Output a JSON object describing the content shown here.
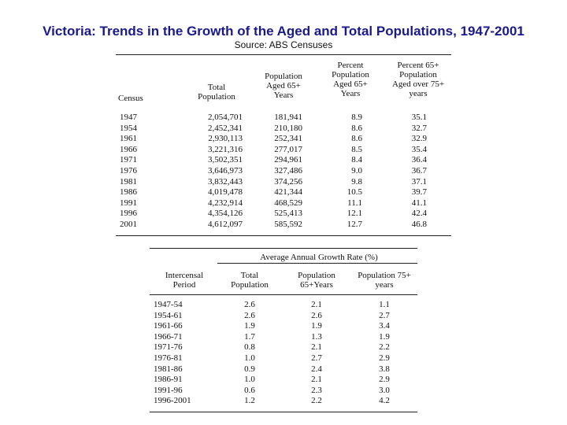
{
  "title": "Victoria:  Trends in the Growth of the Aged and Total Populations, 1947-2001",
  "source": "Source:  ABS Censuses",
  "table1": {
    "headers": {
      "census": "Census",
      "total_population": "Total Population",
      "aged_65": "Population Aged 65+ Years",
      "percent_65": "Percent Population Aged 65+ Years",
      "percent_75": "Percent 65+ Population Aged over 75+ years"
    },
    "rows": [
      {
        "census": "1947",
        "total": "2,054,701",
        "aged": "181,941",
        "pct": "8.9",
        "pct75": "35.1"
      },
      {
        "census": "1954",
        "total": "2,452,341",
        "aged": "210,180",
        "pct": "8.6",
        "pct75": "32.7"
      },
      {
        "census": "1961",
        "total": "2,930,113",
        "aged": "252,341",
        "pct": "8.6",
        "pct75": "32.9"
      },
      {
        "census": "1966",
        "total": "3,221,316",
        "aged": "277,017",
        "pct": "8.5",
        "pct75": "35.4"
      },
      {
        "census": "1971",
        "total": "3,502,351",
        "aged": "294,961",
        "pct": "8.4",
        "pct75": "36.4"
      },
      {
        "census": "1976",
        "total": "3,646,973",
        "aged": "327,486",
        "pct": "9.0",
        "pct75": "36.7"
      },
      {
        "census": "1981",
        "total": "3,832,443",
        "aged": "374,256",
        "pct": "9.8",
        "pct75": "37.1"
      },
      {
        "census": "1986",
        "total": "4,019,478",
        "aged": "421,344",
        "pct": "10.5",
        "pct75": "39.7"
      },
      {
        "census": "1991",
        "total": "4,232,914",
        "aged": "468,529",
        "pct": "11.1",
        "pct75": "41.1"
      },
      {
        "census": "1996",
        "total": "4,354,126",
        "aged": "525,413",
        "pct": "12.1",
        "pct75": "42.4"
      },
      {
        "census": "2001",
        "total": "4,612,097",
        "aged": "585,592",
        "pct": "12.7",
        "pct75": "46.8"
      }
    ]
  },
  "table2": {
    "group_header": "Average Annual Growth Rate (%)",
    "headers": {
      "period": "Intercensal Period",
      "total": "Total Population",
      "p65": "Population 65+Years",
      "p75": "Population 75+ years"
    },
    "rows": [
      {
        "period": "1947-54",
        "total": "2.6",
        "p65": "2.1",
        "p75": "1.1"
      },
      {
        "period": "1954-61",
        "total": "2.6",
        "p65": "2.6",
        "p75": "2.7"
      },
      {
        "period": "1961-66",
        "total": "1.9",
        "p65": "1.9",
        "p75": "3.4"
      },
      {
        "period": "1966-71",
        "total": "1.7",
        "p65": "1.3",
        "p75": "1.9"
      },
      {
        "period": "1971-76",
        "total": "0.8",
        "p65": "2.1",
        "p75": "2.2"
      },
      {
        "period": "1976-81",
        "total": "1.0",
        "p65": "2.7",
        "p75": "2.9"
      },
      {
        "period": "1981-86",
        "total": "0.9",
        "p65": "2.4",
        "p75": "3.8"
      },
      {
        "period": "1986-91",
        "total": "1.0",
        "p65": "2.1",
        "p75": "2.9"
      },
      {
        "period": "1991-96",
        "total": "0.6",
        "p65": "2.3",
        "p75": "3.0"
      },
      {
        "period": "1996-2001",
        "total": "1.2",
        "p65": "2.2",
        "p75": "4.2"
      }
    ]
  }
}
